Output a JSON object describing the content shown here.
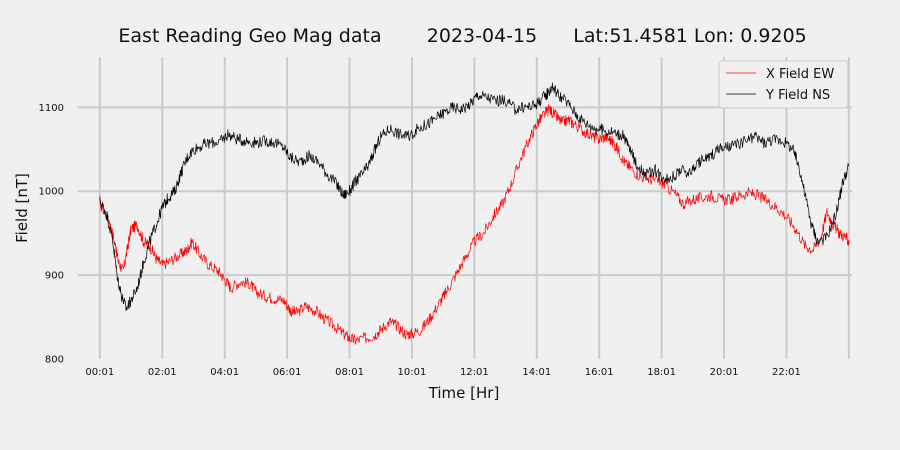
{
  "chart_data": {
    "type": "line",
    "title_parts": [
      "East Reading Geo Mag data",
      "2023-04-15",
      "Lat:51.4581  Lon: 0.9205"
    ],
    "xlabel": "Time  [Hr]",
    "ylabel": "Field  [nT]",
    "x_unit": "hours",
    "xlim": [
      -0.7,
      24.1
    ],
    "ylim": [
      800,
      1160
    ],
    "xticks": [
      {
        "x": 0,
        "label": "00:01"
      },
      {
        "x": 2,
        "label": "02:01"
      },
      {
        "x": 4,
        "label": "04:01"
      },
      {
        "x": 6,
        "label": "06:01"
      },
      {
        "x": 8,
        "label": "08:01"
      },
      {
        "x": 10,
        "label": "10:01"
      },
      {
        "x": 12,
        "label": "12:01"
      },
      {
        "x": 14,
        "label": "14:01"
      },
      {
        "x": 16,
        "label": "16:01"
      },
      {
        "x": 18,
        "label": "18:01"
      },
      {
        "x": 20,
        "label": "20:01"
      },
      {
        "x": 22,
        "label": "22:01"
      },
      {
        "x": 24,
        "label": ""
      }
    ],
    "yticks": [
      {
        "y": 800,
        "label": "800"
      },
      {
        "y": 900,
        "label": "900"
      },
      {
        "y": 1000,
        "label": "1000"
      },
      {
        "y": 1100,
        "label": "1100"
      }
    ],
    "grid": true,
    "legend": "top-right",
    "series": [
      {
        "name": "X Field EW",
        "color": "#ff0000",
        "points": [
          [
            0,
            985
          ],
          [
            0.3,
            965
          ],
          [
            0.5,
            935
          ],
          [
            0.6,
            915
          ],
          [
            0.75,
            905
          ],
          [
            0.9,
            935
          ],
          [
            1.0,
            955
          ],
          [
            1.2,
            960
          ],
          [
            1.4,
            940
          ],
          [
            1.6,
            935
          ],
          [
            1.8,
            920
          ],
          [
            2.0,
            912
          ],
          [
            2.3,
            918
          ],
          [
            2.6,
            925
          ],
          [
            2.8,
            930
          ],
          [
            2.95,
            940
          ],
          [
            3.2,
            925
          ],
          [
            3.5,
            912
          ],
          [
            3.8,
            905
          ],
          [
            4.0,
            895
          ],
          [
            4.2,
            885
          ],
          [
            4.5,
            892
          ],
          [
            4.8,
            890
          ],
          [
            5.0,
            880
          ],
          [
            5.3,
            875
          ],
          [
            5.6,
            872
          ],
          [
            5.9,
            870
          ],
          [
            6.1,
            858
          ],
          [
            6.3,
            855
          ],
          [
            6.6,
            863
          ],
          [
            6.9,
            858
          ],
          [
            7.2,
            848
          ],
          [
            7.5,
            840
          ],
          [
            7.8,
            830
          ],
          [
            8.0,
            825
          ],
          [
            8.2,
            822
          ],
          [
            8.5,
            825
          ],
          [
            8.8,
            828
          ],
          [
            9.0,
            835
          ],
          [
            9.3,
            845
          ],
          [
            9.5,
            840
          ],
          [
            9.8,
            830
          ],
          [
            10.0,
            830
          ],
          [
            10.3,
            835
          ],
          [
            10.6,
            850
          ],
          [
            10.9,
            868
          ],
          [
            11.1,
            880
          ],
          [
            11.4,
            900
          ],
          [
            11.7,
            920
          ],
          [
            12.0,
            940
          ],
          [
            12.3,
            950
          ],
          [
            12.6,
            970
          ],
          [
            12.9,
            985
          ],
          [
            13.2,
            1010
          ],
          [
            13.5,
            1040
          ],
          [
            13.8,
            1065
          ],
          [
            14.0,
            1080
          ],
          [
            14.2,
            1090
          ],
          [
            14.4,
            1098
          ],
          [
            14.6,
            1090
          ],
          [
            14.8,
            1082
          ],
          [
            15.0,
            1085
          ],
          [
            15.2,
            1080
          ],
          [
            15.5,
            1072
          ],
          [
            15.8,
            1065
          ],
          [
            16.0,
            1062
          ],
          [
            16.2,
            1065
          ],
          [
            16.4,
            1060
          ],
          [
            16.6,
            1050
          ],
          [
            16.8,
            1035
          ],
          [
            17.0,
            1028
          ],
          [
            17.3,
            1018
          ],
          [
            17.6,
            1015
          ],
          [
            17.9,
            1012
          ],
          [
            18.1,
            1008
          ],
          [
            18.4,
            998
          ],
          [
            18.7,
            985
          ],
          [
            19.0,
            990
          ],
          [
            19.3,
            992
          ],
          [
            19.6,
            995
          ],
          [
            19.9,
            990
          ],
          [
            20.2,
            990
          ],
          [
            20.5,
            995
          ],
          [
            20.8,
            998
          ],
          [
            21.1,
            995
          ],
          [
            21.4,
            988
          ],
          [
            21.7,
            980
          ],
          [
            22.0,
            970
          ],
          [
            22.3,
            955
          ],
          [
            22.6,
            935
          ],
          [
            22.85,
            930
          ],
          [
            23.1,
            945
          ],
          [
            23.3,
            975
          ],
          [
            23.5,
            960
          ],
          [
            23.7,
            950
          ],
          [
            23.9,
            945
          ],
          [
            24.0,
            940
          ]
        ]
      },
      {
        "name": "Y Field NS",
        "color": "#000000",
        "points": [
          [
            0,
            988
          ],
          [
            0.2,
            975
          ],
          [
            0.4,
            945
          ],
          [
            0.55,
            900
          ],
          [
            0.7,
            875
          ],
          [
            0.85,
            860
          ],
          [
            1.0,
            870
          ],
          [
            1.2,
            885
          ],
          [
            1.4,
            915
          ],
          [
            1.6,
            940
          ],
          [
            1.8,
            960
          ],
          [
            2.0,
            980
          ],
          [
            2.2,
            993
          ],
          [
            2.4,
            1000
          ],
          [
            2.6,
            1022
          ],
          [
            2.8,
            1040
          ],
          [
            3.0,
            1050
          ],
          [
            3.3,
            1055
          ],
          [
            3.6,
            1058
          ],
          [
            3.9,
            1060
          ],
          [
            4.1,
            1068
          ],
          [
            4.4,
            1062
          ],
          [
            4.7,
            1060
          ],
          [
            5.0,
            1058
          ],
          [
            5.3,
            1060
          ],
          [
            5.6,
            1058
          ],
          [
            5.9,
            1052
          ],
          [
            6.1,
            1040
          ],
          [
            6.4,
            1035
          ],
          [
            6.7,
            1042
          ],
          [
            7.0,
            1035
          ],
          [
            7.3,
            1020
          ],
          [
            7.6,
            1008
          ],
          [
            7.8,
            995
          ],
          [
            8.0,
            1000
          ],
          [
            8.2,
            1012
          ],
          [
            8.4,
            1020
          ],
          [
            8.6,
            1030
          ],
          [
            8.8,
            1048
          ],
          [
            9.0,
            1065
          ],
          [
            9.3,
            1075
          ],
          [
            9.6,
            1068
          ],
          [
            9.9,
            1065
          ],
          [
            10.2,
            1075
          ],
          [
            10.5,
            1080
          ],
          [
            10.8,
            1088
          ],
          [
            11.0,
            1093
          ],
          [
            11.3,
            1100
          ],
          [
            11.6,
            1098
          ],
          [
            11.9,
            1105
          ],
          [
            12.1,
            1115
          ],
          [
            12.4,
            1112
          ],
          [
            12.7,
            1108
          ],
          [
            13.0,
            1108
          ],
          [
            13.3,
            1098
          ],
          [
            13.6,
            1100
          ],
          [
            13.9,
            1102
          ],
          [
            14.1,
            1108
          ],
          [
            14.3,
            1115
          ],
          [
            14.5,
            1125
          ],
          [
            14.7,
            1115
          ],
          [
            15.0,
            1105
          ],
          [
            15.3,
            1090
          ],
          [
            15.6,
            1080
          ],
          [
            15.9,
            1075
          ],
          [
            16.2,
            1072
          ],
          [
            16.5,
            1070
          ],
          [
            16.8,
            1065
          ],
          [
            17.0,
            1048
          ],
          [
            17.2,
            1032
          ],
          [
            17.5,
            1020
          ],
          [
            17.8,
            1025
          ],
          [
            18.0,
            1018
          ],
          [
            18.3,
            1015
          ],
          [
            18.6,
            1025
          ],
          [
            18.9,
            1022
          ],
          [
            19.2,
            1035
          ],
          [
            19.5,
            1040
          ],
          [
            19.8,
            1050
          ],
          [
            20.1,
            1052
          ],
          [
            20.4,
            1055
          ],
          [
            20.7,
            1060
          ],
          [
            21.0,
            1065
          ],
          [
            21.3,
            1058
          ],
          [
            21.6,
            1062
          ],
          [
            21.9,
            1060
          ],
          [
            22.2,
            1050
          ],
          [
            22.4,
            1030
          ],
          [
            22.6,
            995
          ],
          [
            22.8,
            960
          ],
          [
            23.0,
            940
          ],
          [
            23.3,
            945
          ],
          [
            23.6,
            975
          ],
          [
            23.8,
            1010
          ],
          [
            24.0,
            1030
          ]
        ]
      }
    ]
  }
}
